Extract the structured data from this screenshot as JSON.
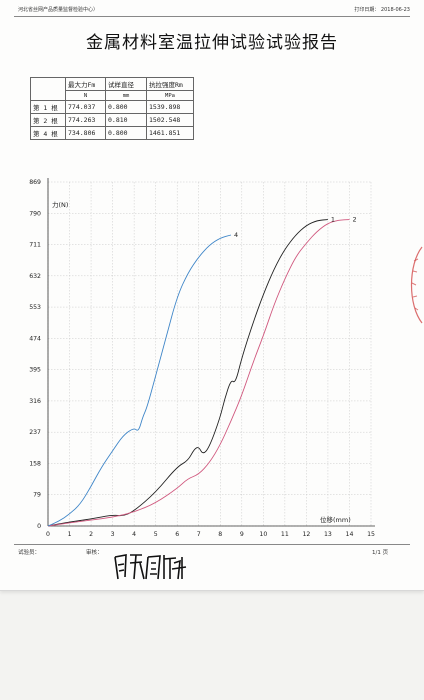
{
  "header": {
    "org": "河北省丝网产品质量监督检验中心）",
    "print_date": "打印日期： 2018-06-23"
  },
  "title": "金属材料室温拉伸试验试验报告",
  "results_table": {
    "headers": [
      "",
      "最大力Fm",
      "试样直径",
      "抗拉强度Rm"
    ],
    "units": [
      "",
      "N",
      "mm",
      "MPa"
    ],
    "rows": [
      [
        "第 1 根",
        "774.037",
        "0.800",
        "1539.898"
      ],
      [
        "第 2 根",
        "774.263",
        "0.810",
        "1502.548"
      ],
      [
        "第 4 根",
        "734.806",
        "0.800",
        "1461.851"
      ]
    ]
  },
  "chart_data": {
    "type": "line",
    "xlabel": "位移(mm)",
    "ylabel": "力(N)",
    "xlim": [
      0,
      15
    ],
    "ylim": [
      0,
      869
    ],
    "xticks": [
      0,
      1,
      2,
      3,
      4,
      5,
      6,
      7,
      8,
      9,
      10,
      11,
      12,
      13,
      14,
      15
    ],
    "yticks": [
      0,
      79,
      158,
      237,
      316,
      395,
      474,
      553,
      632,
      711,
      790,
      869
    ],
    "grid": true,
    "series": [
      {
        "name": "1",
        "color": "#222222",
        "x": [
          0,
          1,
          2,
          3,
          3.5,
          4,
          5,
          6,
          6.5,
          6.8,
          7,
          7.2,
          7.5,
          8,
          8.2,
          8.5,
          8.7,
          9,
          9.5,
          10,
          10.5,
          11,
          11.5,
          12,
          12.5,
          13
        ],
        "y": [
          0,
          10,
          18,
          28,
          25,
          38,
          85,
          150,
          165,
          195,
          200,
          180,
          200,
          275,
          320,
          370,
          360,
          425,
          510,
          585,
          650,
          700,
          735,
          760,
          772,
          774
        ]
      },
      {
        "name": "2",
        "color": "#d0587e",
        "x": [
          0,
          1,
          2,
          3,
          4,
          5,
          6,
          6.5,
          7,
          7.5,
          8,
          8.5,
          9,
          9.5,
          10,
          10.5,
          11,
          11.5,
          12,
          12.5,
          13,
          13.5,
          14
        ],
        "y": [
          0,
          8,
          15,
          22,
          35,
          58,
          95,
          120,
          130,
          160,
          205,
          265,
          330,
          410,
          480,
          560,
          625,
          680,
          715,
          745,
          765,
          773,
          774
        ]
      },
      {
        "name": "4",
        "color": "#3f86c8",
        "x": [
          0,
          0.5,
          1,
          1.5,
          2,
          2.5,
          3,
          3.5,
          4,
          4.2,
          4.4,
          4.6,
          5,
          5.5,
          6,
          6.5,
          7,
          7.5,
          8,
          8.5
        ],
        "y": [
          0,
          12,
          30,
          55,
          100,
          150,
          190,
          230,
          248,
          238,
          275,
          300,
          380,
          480,
          580,
          640,
          680,
          710,
          728,
          735
        ]
      }
    ]
  },
  "footer": {
    "tester_label": "试验员：",
    "reviewer_label": "审核：",
    "page": "1/1 页"
  }
}
